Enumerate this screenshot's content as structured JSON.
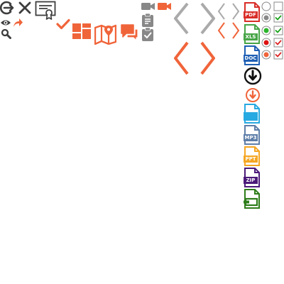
{
  "colors": {
    "dark": "#3d3d3d",
    "gray": "#888888",
    "orange": "#f0643a",
    "light_gray": "#aaaaaa",
    "pdf": "#d92d27",
    "xls": "#47a547",
    "doc": "#1e5fb4",
    "black": "#111111",
    "screen": "#27a9e1",
    "mp3": "#5e7ea8",
    "ppt": "#f5a623",
    "zip": "#4b1a7a",
    "archive": "#2e7d1a",
    "check_green": "#1aa31a",
    "radio_green": "#2ab52a",
    "radio_red": "#dd1111",
    "checkbox_red": "#dd2222"
  },
  "icons": {
    "login": "login-icon",
    "close": "close-icon",
    "certificate": "certificate-icon",
    "eye": "eye-icon",
    "share": "share-arrow-icon",
    "search": "search-icon",
    "checkmark": "checkmark-icon",
    "tiles": "tiles-icon",
    "map": "map-icon",
    "chat": "chat-icon",
    "video_gray": "video-camera-icon",
    "video_orange": "video-camera-icon",
    "clipboard_text": "clipboard-text-icon",
    "clipboard_check": "clipboard-check-icon"
  },
  "files": [
    {
      "label": "PDF"
    },
    {
      "label": "XLS"
    },
    {
      "label": "DOC"
    },
    {
      "label": ""
    },
    {
      "label": "MP3"
    },
    {
      "label": "PPT"
    },
    {
      "label": "ZIP"
    }
  ],
  "form_controls": [
    {
      "radio": "empty",
      "checkbox": "empty"
    },
    {
      "radio": "gray-selected",
      "checkbox": "checked-green"
    },
    {
      "radio": "green-selected",
      "checkbox": "checked-green"
    },
    {
      "radio": "red-selected",
      "checkbox": "checked-red"
    },
    {
      "radio": "orange-selected",
      "checkbox": "checked-red"
    }
  ]
}
